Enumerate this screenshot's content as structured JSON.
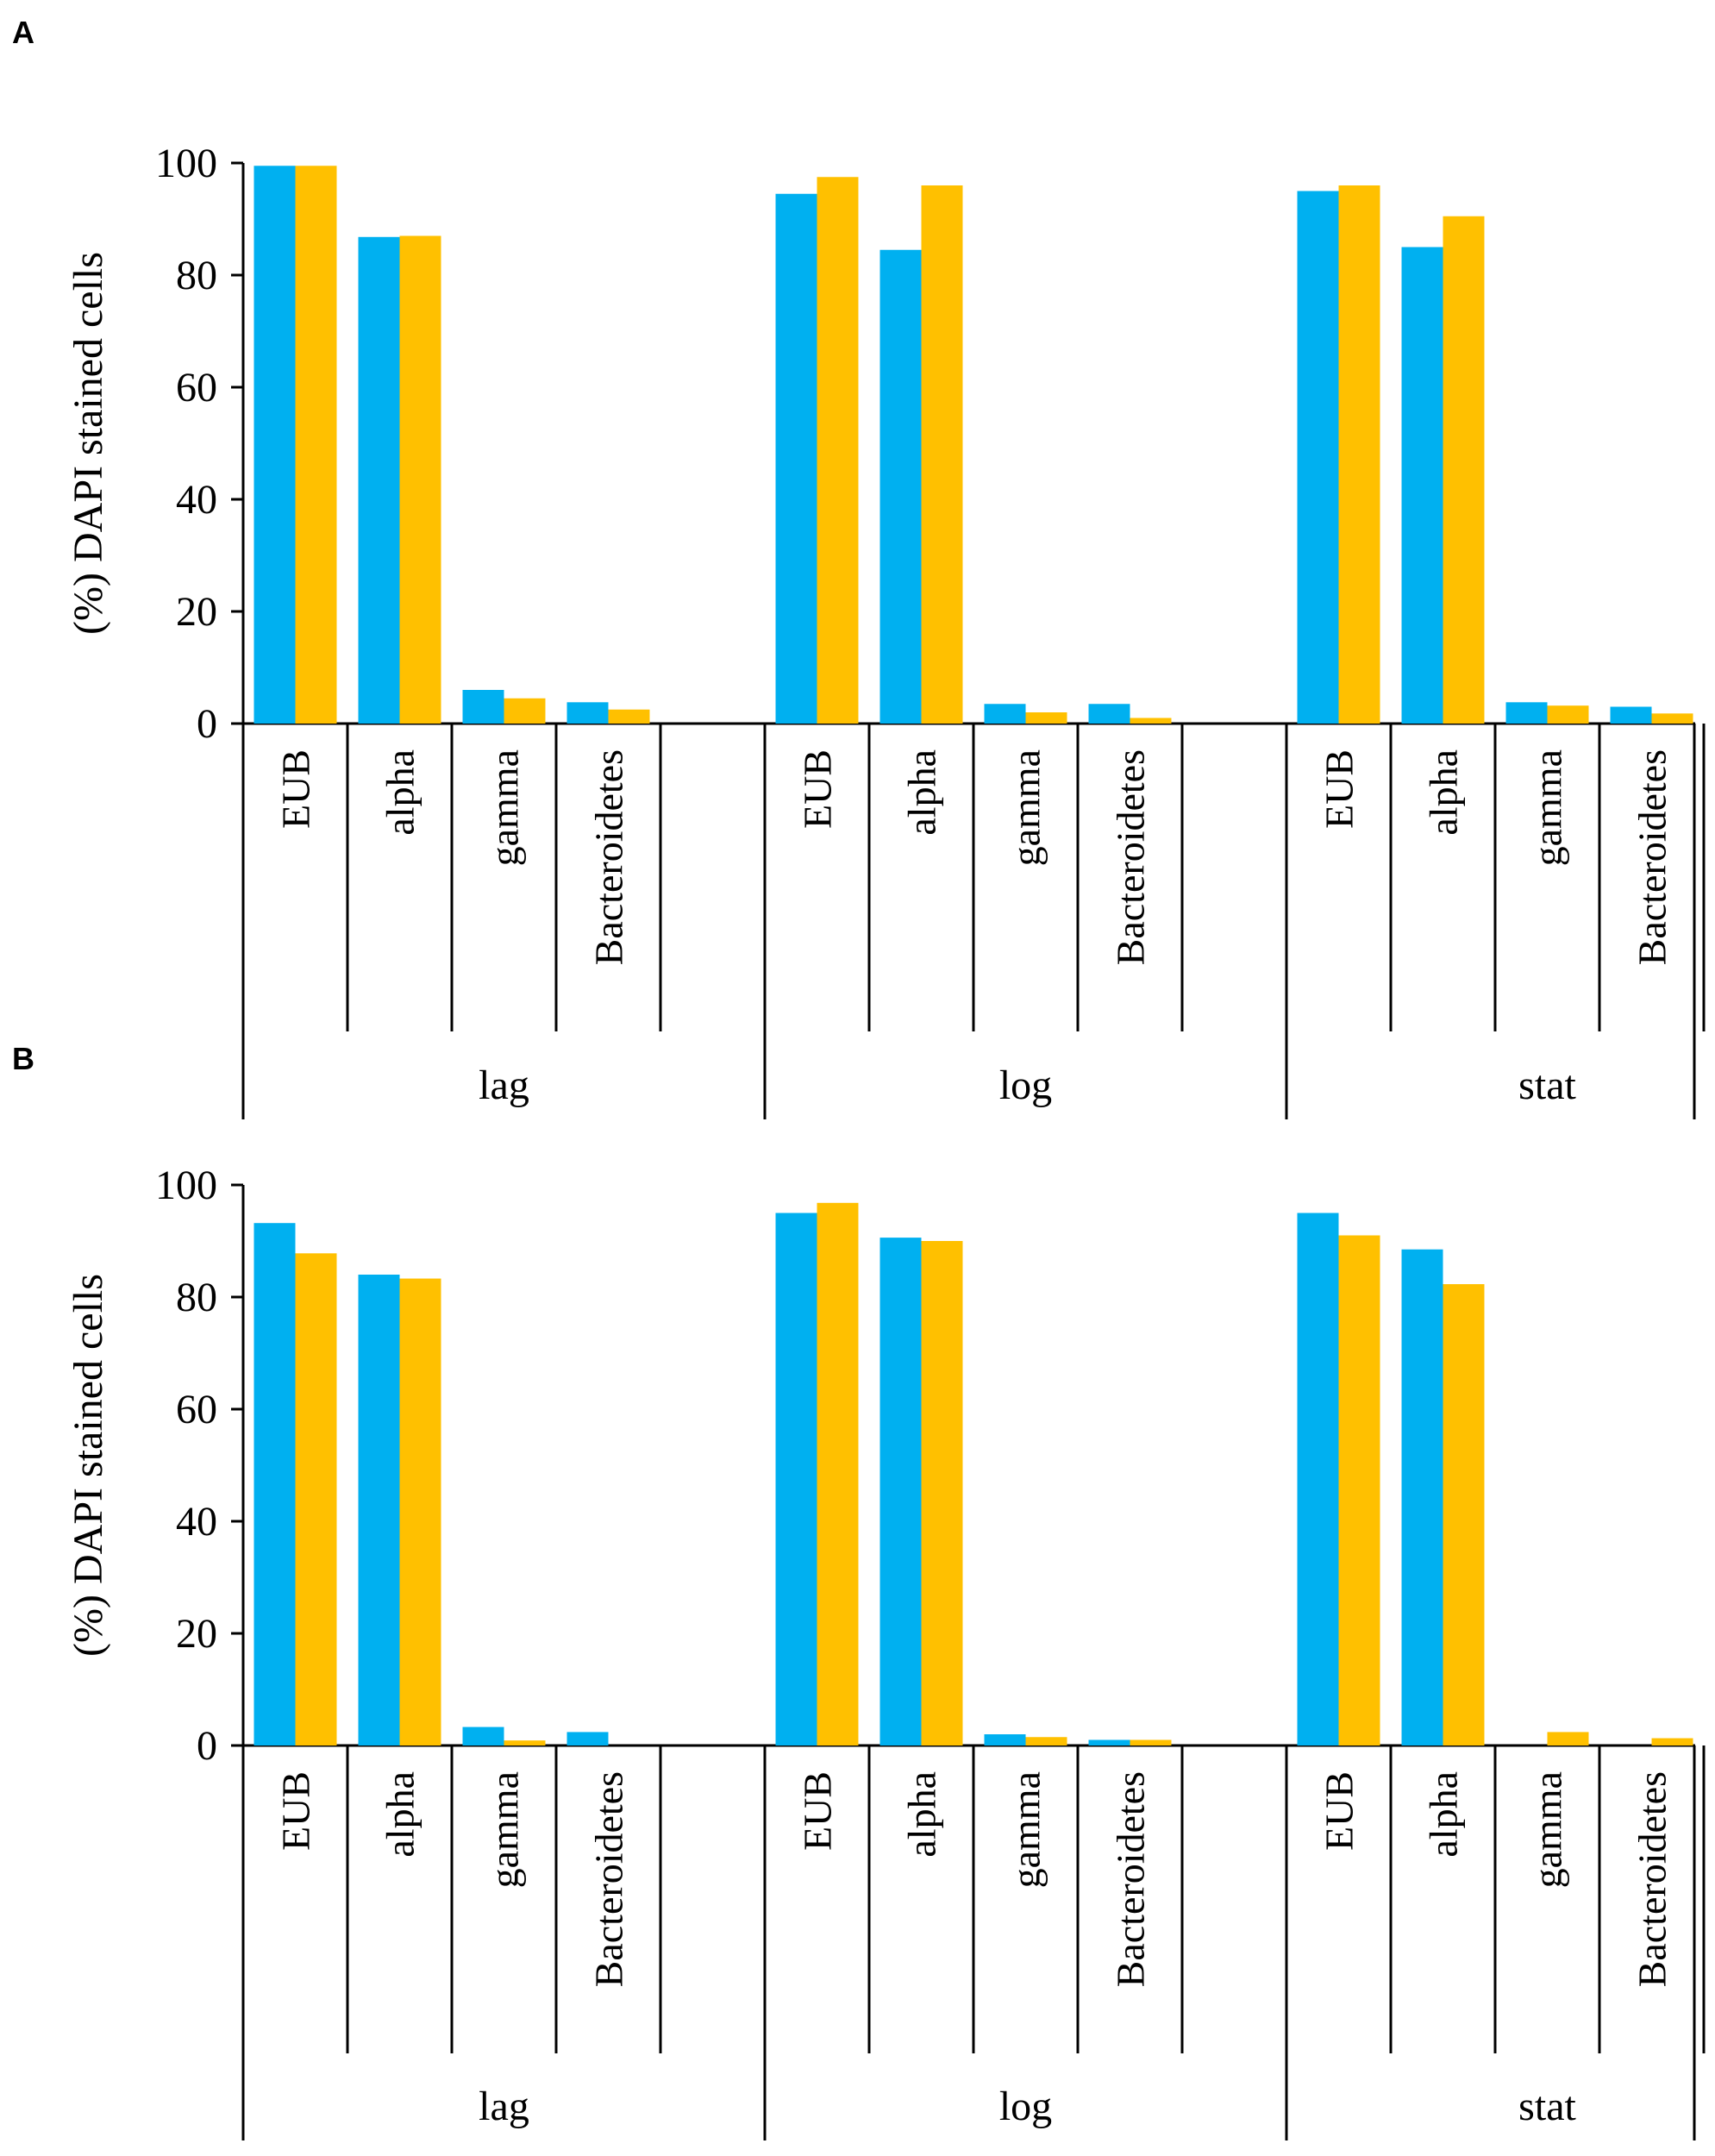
{
  "chart_data": [
    {
      "panel": "A",
      "type": "bar",
      "ylabel": "(%) DAPI stained cells",
      "ylim": [
        0,
        100
      ],
      "yticks": [
        "0",
        "20",
        "40",
        "60",
        "80",
        "100"
      ],
      "groups": [
        {
          "name": "lag",
          "categories": [
            "EUB",
            "alpha",
            "gamma",
            "Bacteroidetes"
          ]
        },
        {
          "name": "log",
          "categories": [
            "EUB",
            "alpha",
            "gamma",
            "Bacteroidetes"
          ]
        },
        {
          "name": "stat",
          "categories": [
            "EUB",
            "alpha",
            "gamma",
            "Bacteroidetes"
          ]
        }
      ],
      "series": [
        {
          "color": "#00b0f0",
          "values": [
            99.5,
            86.8,
            6,
            3.8,
            94.5,
            84.5,
            3.5,
            3.5,
            95,
            85,
            3.8,
            3
          ]
        },
        {
          "color": "#ffc000",
          "values": [
            99.5,
            87,
            4.5,
            2.5,
            97.5,
            96,
            2,
            1,
            96,
            90.5,
            3.2,
            1.8
          ]
        }
      ]
    },
    {
      "panel": "B",
      "type": "bar",
      "ylabel": "(%) DAPI stained cells",
      "ylim": [
        0,
        100
      ],
      "yticks": [
        "0",
        "20",
        "40",
        "60",
        "80",
        "100"
      ],
      "groups": [
        {
          "name": "lag",
          "categories": [
            "EUB",
            "alpha",
            "gamma",
            "Bacteroidetes"
          ]
        },
        {
          "name": "log",
          "categories": [
            "EUB",
            "alpha",
            "gamma",
            "Bacteroidetes"
          ]
        },
        {
          "name": "stat",
          "categories": [
            "EUB",
            "alpha",
            "gamma",
            "Bacteroidetes"
          ]
        }
      ],
      "series": [
        {
          "color": "#00b0f0",
          "values": [
            93.2,
            84,
            3.3,
            2.4,
            95,
            90.6,
            2,
            1,
            95,
            88.5,
            0,
            0
          ]
        },
        {
          "color": "#ffc000",
          "values": [
            87.8,
            83.3,
            0.9,
            0,
            96.8,
            90,
            1.5,
            1,
            91,
            82.3,
            2.4,
            1.3
          ]
        }
      ]
    }
  ]
}
